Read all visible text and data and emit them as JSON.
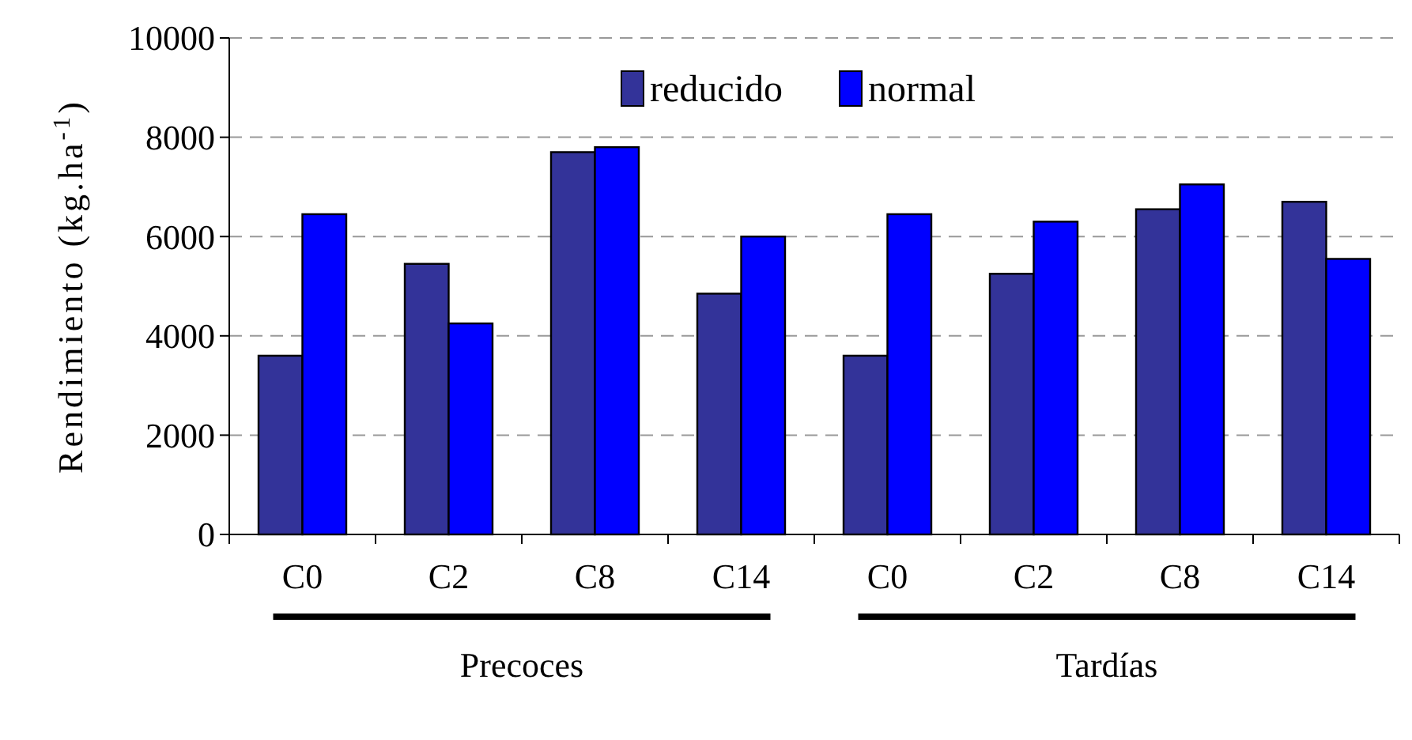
{
  "chart_data": {
    "type": "bar",
    "ylabel": "Rendimiento (kg.ha$^{-1}$)",
    "categories": [
      "C0",
      "C2",
      "C8",
      "C14",
      "C0",
      "C2",
      "C8",
      "C14"
    ],
    "series": [
      {
        "name": "reducido",
        "color": "#333399",
        "values": [
          3600,
          5450,
          7700,
          4850,
          3600,
          5250,
          6550,
          6700
        ]
      },
      {
        "name": "normal",
        "color": "#0000ff",
        "values": [
          6450,
          4250,
          7800,
          6000,
          6450,
          6300,
          7050,
          5550
        ]
      }
    ],
    "ylim": [
      0,
      10000
    ],
    "yticks": [
      0,
      2000,
      4000,
      6000,
      8000,
      10000
    ],
    "grid": "y",
    "legend": "top",
    "annotations": [
      "Precoces",
      "Tardías"
    ]
  }
}
